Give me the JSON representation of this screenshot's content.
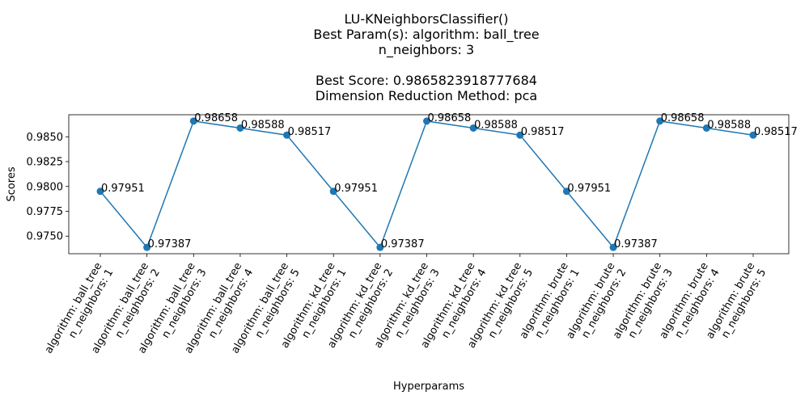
{
  "chart_data": {
    "type": "line",
    "title_lines": [
      "LU-KNeighborsClassifier()",
      "Best Param(s): algorithm: ball_tree",
      "n_neighbors: 3",
      "",
      "Best Score: 0.9865823918777684",
      "Dimension Reduction Method: pca"
    ],
    "xlabel": "Hyperparams",
    "ylabel": "Scores",
    "categories": [
      [
        "algorithm: ball_tree",
        "n_neighbors: 1"
      ],
      [
        "algorithm: ball_tree",
        "n_neighbors: 2"
      ],
      [
        "algorithm: ball_tree",
        "n_neighbors: 3"
      ],
      [
        "algorithm: ball_tree",
        "n_neighbors: 4"
      ],
      [
        "algorithm: ball_tree",
        "n_neighbors: 5"
      ],
      [
        "algorithm: kd_tree",
        "n_neighbors: 1"
      ],
      [
        "algorithm: kd_tree",
        "n_neighbors: 2"
      ],
      [
        "algorithm: kd_tree",
        "n_neighbors: 3"
      ],
      [
        "algorithm: kd_tree",
        "n_neighbors: 4"
      ],
      [
        "algorithm: kd_tree",
        "n_neighbors: 5"
      ],
      [
        "algorithm: brute",
        "n_neighbors: 1"
      ],
      [
        "algorithm: brute",
        "n_neighbors: 2"
      ],
      [
        "algorithm: brute",
        "n_neighbors: 3"
      ],
      [
        "algorithm: brute",
        "n_neighbors: 4"
      ],
      [
        "algorithm: brute",
        "n_neighbors: 5"
      ]
    ],
    "values": [
      0.97951,
      0.97387,
      0.98658,
      0.98588,
      0.98517,
      0.97951,
      0.97387,
      0.98658,
      0.98588,
      0.98517,
      0.97951,
      0.97387,
      0.98658,
      0.98588,
      0.98517
    ],
    "point_labels": [
      "0.97951",
      "0.97387",
      "0.98658",
      "0.98588",
      "0.98517",
      "0.97951",
      "0.97387",
      "0.98658",
      "0.98588",
      "0.98517",
      "0.97951",
      "0.97387",
      "0.98658",
      "0.98588",
      "0.98517"
    ],
    "yticks": [
      "0.9750",
      "0.9775",
      "0.9800",
      "0.9825",
      "0.9850"
    ],
    "ylim": [
      0.97323,
      0.98722
    ],
    "grid": false,
    "line_color": "#1f77b4",
    "marker_color": "#1f77b4"
  }
}
